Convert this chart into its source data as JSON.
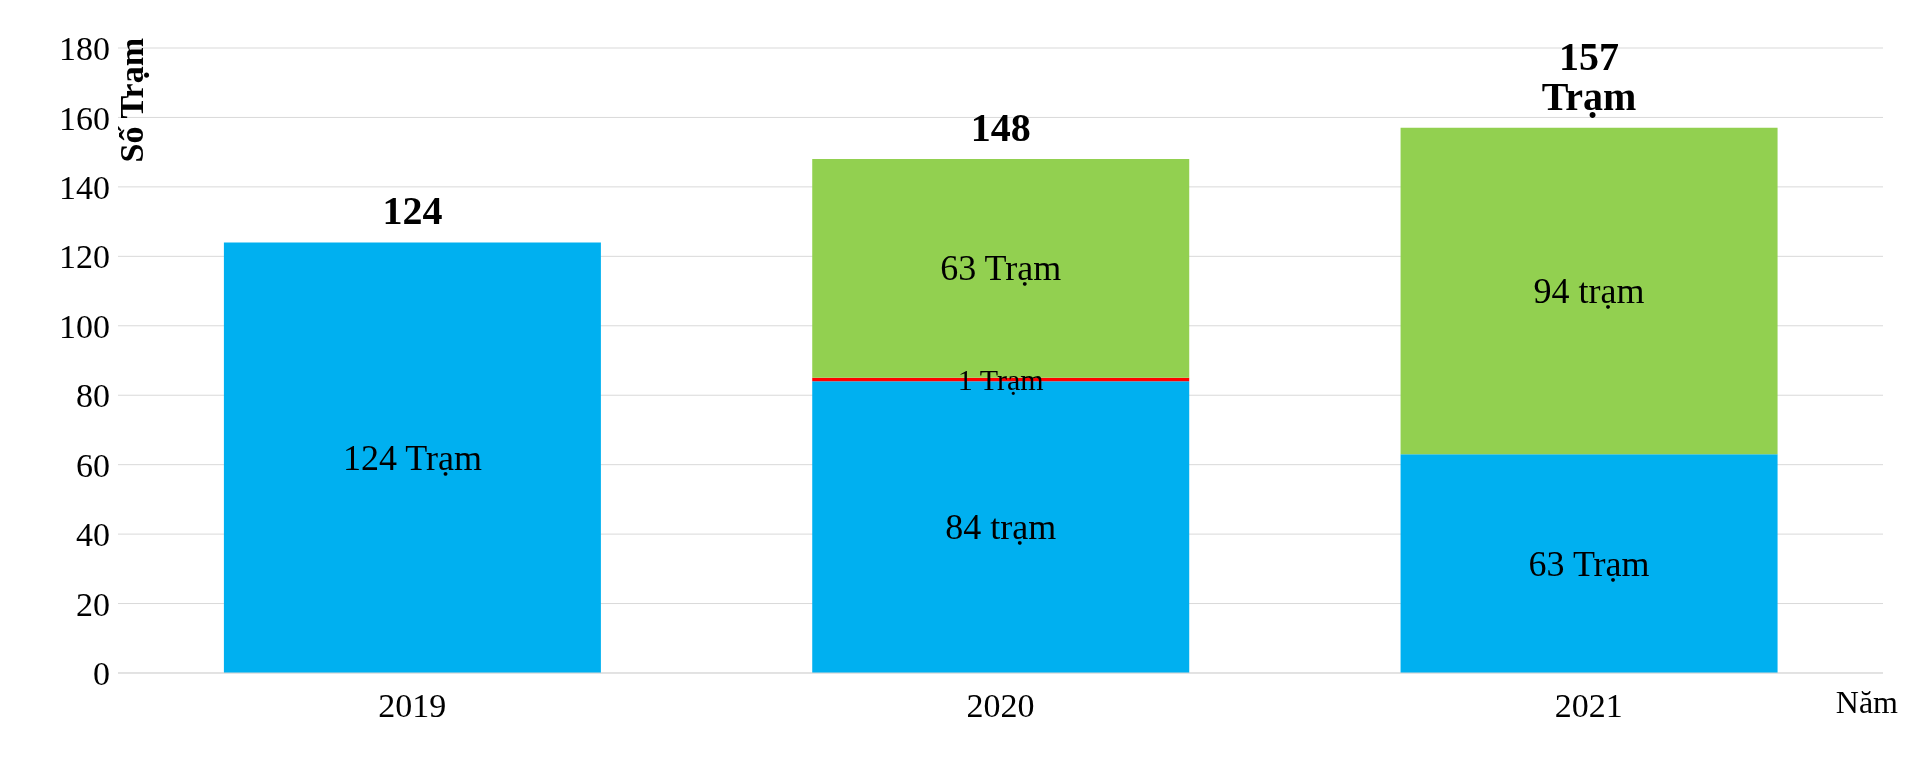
{
  "chart_data": {
    "type": "bar",
    "stacked": true,
    "categories": [
      "2019",
      "2020",
      "2021"
    ],
    "series": [
      {
        "color": "#00b0f0",
        "values": [
          124,
          84,
          63
        ],
        "value_labels": [
          "124 Trạm",
          "84 trạm",
          "63 Trạm"
        ]
      },
      {
        "color": "#ff0000",
        "values": [
          null,
          1,
          null
        ],
        "value_labels": [
          null,
          "1 Trạm",
          null
        ]
      },
      {
        "color": "#92d050",
        "values": [
          null,
          63,
          94
        ],
        "value_labels": [
          null,
          "63 Trạm",
          "94 trạm"
        ]
      }
    ],
    "totals": [
      "124",
      "148",
      "157 Trạm"
    ],
    "ylabel": "Số Trạm",
    "xlabel": "Năm",
    "ylim": [
      0,
      180
    ],
    "yticks": [
      0,
      20,
      40,
      60,
      80,
      100,
      120,
      140,
      160,
      180
    ],
    "grid": "y"
  }
}
